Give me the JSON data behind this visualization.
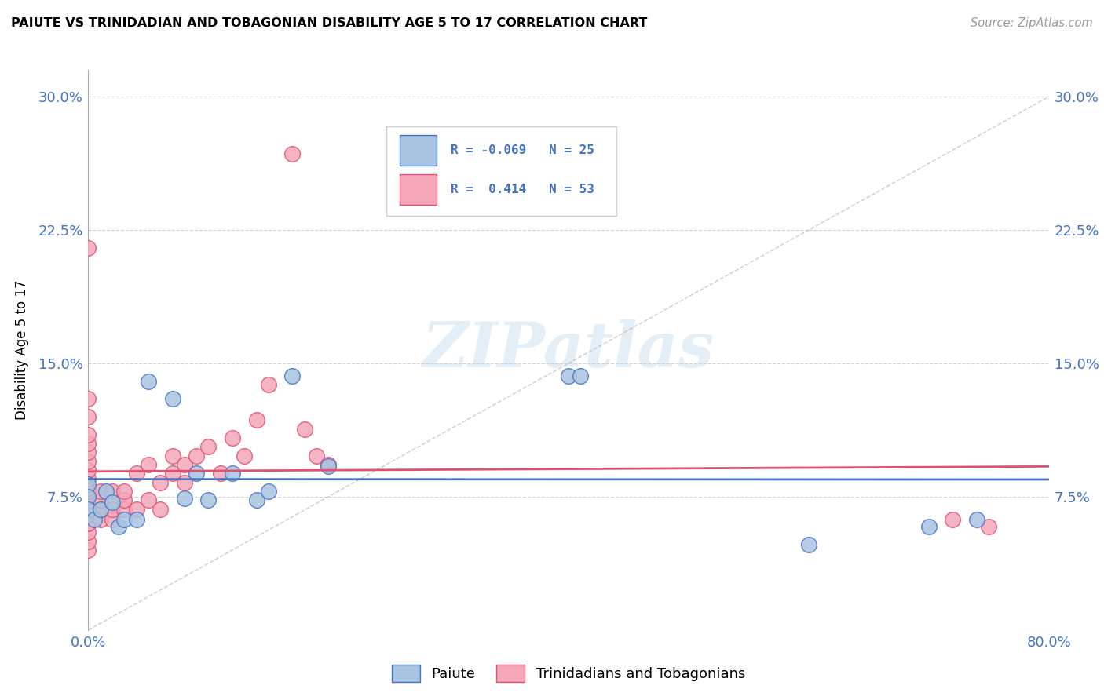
{
  "title": "PAIUTE VS TRINIDADIAN AND TOBAGONIAN DISABILITY AGE 5 TO 17 CORRELATION CHART",
  "source": "Source: ZipAtlas.com",
  "ylabel": "Disability Age 5 to 17",
  "xlim": [
    0.0,
    0.8
  ],
  "ylim": [
    0.0,
    0.315
  ],
  "yticks": [
    0.075,
    0.15,
    0.225,
    0.3
  ],
  "yticklabels": [
    "7.5%",
    "15.0%",
    "22.5%",
    "30.0%"
  ],
  "xticks": [
    0.0,
    0.8
  ],
  "xticklabels": [
    "0.0%",
    "80.0%"
  ],
  "color_blue": "#a8c4e0",
  "color_pink": "#f4a7b9",
  "line_blue": "#4472c4",
  "line_pink": "#e05070",
  "line_dashed": "#c0c0c0",
  "tick_color": "#4472c4",
  "watermark": "ZIPatlas",
  "blue_points_x": [
    0.0,
    0.0,
    0.0,
    0.005,
    0.01,
    0.015,
    0.02,
    0.025,
    0.03,
    0.04,
    0.05,
    0.07,
    0.08,
    0.09,
    0.1,
    0.12,
    0.14,
    0.15,
    0.17,
    0.2,
    0.4,
    0.41,
    0.6,
    0.7,
    0.74
  ],
  "blue_points_y": [
    0.082,
    0.075,
    0.068,
    0.062,
    0.068,
    0.078,
    0.072,
    0.058,
    0.062,
    0.062,
    0.14,
    0.13,
    0.074,
    0.088,
    0.073,
    0.088,
    0.073,
    0.078,
    0.143,
    0.092,
    0.143,
    0.143,
    0.048,
    0.058,
    0.062
  ],
  "pink_points_x": [
    0.0,
    0.0,
    0.0,
    0.0,
    0.0,
    0.0,
    0.0,
    0.0,
    0.0,
    0.0,
    0.0,
    0.0,
    0.0,
    0.0,
    0.0,
    0.0,
    0.0,
    0.0,
    0.0,
    0.0,
    0.01,
    0.01,
    0.01,
    0.01,
    0.02,
    0.02,
    0.02,
    0.03,
    0.03,
    0.03,
    0.04,
    0.04,
    0.05,
    0.05,
    0.06,
    0.06,
    0.07,
    0.07,
    0.08,
    0.08,
    0.09,
    0.1,
    0.11,
    0.12,
    0.13,
    0.14,
    0.15,
    0.17,
    0.18,
    0.19,
    0.2,
    0.72,
    0.75
  ],
  "pink_points_y": [
    0.045,
    0.05,
    0.055,
    0.06,
    0.065,
    0.07,
    0.075,
    0.078,
    0.08,
    0.085,
    0.09,
    0.095,
    0.1,
    0.105,
    0.11,
    0.12,
    0.13,
    0.215,
    0.06,
    0.065,
    0.062,
    0.068,
    0.073,
    0.078,
    0.062,
    0.068,
    0.078,
    0.068,
    0.073,
    0.078,
    0.068,
    0.088,
    0.073,
    0.093,
    0.068,
    0.083,
    0.088,
    0.098,
    0.083,
    0.093,
    0.098,
    0.103,
    0.088,
    0.108,
    0.098,
    0.118,
    0.138,
    0.268,
    0.113,
    0.098,
    0.093,
    0.062,
    0.058
  ]
}
